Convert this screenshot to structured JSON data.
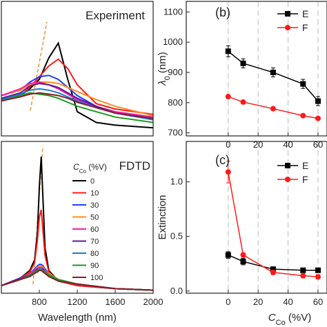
{
  "chart_data": [
    {
      "type": "line",
      "title": "Experiment",
      "title_color": "#ff1a1a",
      "x": [
        400,
        600,
        700,
        800,
        900,
        1000,
        1100,
        1200,
        1400,
        1600,
        2000
      ],
      "xlim": [
        400,
        2000
      ],
      "ylim": [
        0,
        1
      ],
      "series": [
        {
          "color": "#000000",
          "values": [
            0.26,
            0.3,
            0.35,
            0.42,
            0.58,
            0.69,
            0.42,
            0.18,
            0.1,
            0.08,
            0.06
          ]
        },
        {
          "color": "#ff1a1a",
          "values": [
            0.28,
            0.3,
            0.36,
            0.44,
            0.52,
            0.57,
            0.5,
            0.38,
            0.24,
            0.2,
            0.16
          ]
        },
        {
          "color": "#1f3fff",
          "values": [
            0.3,
            0.34,
            0.4,
            0.44,
            0.45,
            0.42,
            0.36,
            0.3,
            0.22,
            0.17,
            0.12
          ]
        },
        {
          "color": "#ff8c1a",
          "values": [
            0.3,
            0.34,
            0.38,
            0.4,
            0.4,
            0.39,
            0.36,
            0.33,
            0.27,
            0.22,
            0.15
          ]
        },
        {
          "color": "#ff1aa8",
          "values": [
            0.3,
            0.35,
            0.39,
            0.4,
            0.38,
            0.35,
            0.31,
            0.27,
            0.22,
            0.18,
            0.14
          ]
        },
        {
          "color": "#5a1a9a",
          "values": [
            0.28,
            0.32,
            0.37,
            0.39,
            0.38,
            0.36,
            0.32,
            0.28,
            0.22,
            0.17,
            0.13
          ]
        },
        {
          "color": "#1a7ad0",
          "values": [
            0.27,
            0.31,
            0.34,
            0.35,
            0.34,
            0.32,
            0.29,
            0.26,
            0.21,
            0.17,
            0.12
          ]
        },
        {
          "color": "#1a9a1a",
          "values": [
            0.26,
            0.3,
            0.32,
            0.31,
            0.3,
            0.28,
            0.25,
            0.22,
            0.18,
            0.14,
            0.1
          ]
        },
        {
          "color": "#8a1a2a",
          "values": [
            0.26,
            0.29,
            0.31,
            0.32,
            0.31,
            0.3,
            0.28,
            0.25,
            0.21,
            0.17,
            0.13
          ]
        }
      ]
    },
    {
      "type": "line",
      "title": "FDTD",
      "title_color": "#ff1a1a",
      "xlabel": "Wavelength (nm)",
      "legend_title": [
        "C",
        "Co",
        " (%V)"
      ],
      "x": [
        400,
        600,
        700,
        750,
        780,
        800,
        820,
        840,
        860,
        900,
        1000,
        1200,
        1600,
        2000
      ],
      "xlim": [
        400,
        2000
      ],
      "xticks": [
        800,
        1200,
        1600,
        2000
      ],
      "ylim": [
        0,
        1
      ],
      "series": [
        {
          "name": "0",
          "color": "#000000",
          "values": [
            0.05,
            0.1,
            0.15,
            0.22,
            0.4,
            0.7,
            0.9,
            0.6,
            0.3,
            0.15,
            0.08,
            0.05,
            0.03,
            0.02
          ]
        },
        {
          "name": "10",
          "color": "#ff1a1a",
          "values": [
            0.05,
            0.1,
            0.14,
            0.2,
            0.35,
            0.5,
            0.55,
            0.4,
            0.25,
            0.14,
            0.08,
            0.05,
            0.03,
            0.02
          ]
        },
        {
          "name": "30",
          "color": "#1f3fff",
          "values": [
            0.05,
            0.1,
            0.13,
            0.16,
            0.18,
            0.19,
            0.19,
            0.18,
            0.16,
            0.13,
            0.09,
            0.06,
            0.03,
            0.02
          ]
        },
        {
          "name": "50",
          "color": "#ff8c1a",
          "values": [
            0.05,
            0.1,
            0.13,
            0.15,
            0.17,
            0.18,
            0.18,
            0.17,
            0.15,
            0.13,
            0.09,
            0.06,
            0.03,
            0.02
          ]
        },
        {
          "name": "60",
          "color": "#ff1aa8",
          "values": [
            0.05,
            0.1,
            0.13,
            0.15,
            0.16,
            0.17,
            0.17,
            0.16,
            0.15,
            0.12,
            0.09,
            0.06,
            0.03,
            0.02
          ]
        },
        {
          "name": "70",
          "color": "#5a1a9a",
          "values": [
            0.05,
            0.1,
            0.12,
            0.14,
            0.16,
            0.16,
            0.16,
            0.16,
            0.14,
            0.12,
            0.09,
            0.06,
            0.03,
            0.02
          ]
        },
        {
          "name": "80",
          "color": "#1a7ad0",
          "values": [
            0.05,
            0.09,
            0.12,
            0.14,
            0.15,
            0.16,
            0.16,
            0.15,
            0.14,
            0.12,
            0.09,
            0.06,
            0.03,
            0.02
          ]
        },
        {
          "name": "90",
          "color": "#1a9a1a",
          "values": [
            0.05,
            0.09,
            0.12,
            0.14,
            0.15,
            0.15,
            0.15,
            0.15,
            0.14,
            0.12,
            0.09,
            0.06,
            0.03,
            0.02
          ]
        },
        {
          "name": "100",
          "color": "#8a1a2a",
          "values": [
            0.05,
            0.09,
            0.11,
            0.13,
            0.14,
            0.15,
            0.15,
            0.14,
            0.13,
            0.11,
            0.08,
            0.06,
            0.03,
            0.02
          ]
        }
      ]
    },
    {
      "type": "line",
      "title": "(b)",
      "ylabel": [
        "λ",
        "0",
        " (nm)"
      ],
      "x": [
        0,
        10,
        30,
        50,
        60
      ],
      "xlim": [
        -28,
        66
      ],
      "xticks": [
        0,
        20,
        40,
        60
      ],
      "grid": true,
      "ylim": [
        690,
        1135
      ],
      "yticks": [
        700,
        800,
        900,
        1000,
        1100
      ],
      "series": [
        {
          "name": "E",
          "color": "#000000",
          "marker": "square",
          "values": [
            970,
            930,
            900,
            862,
            805
          ],
          "errors": [
            18,
            15,
            15,
            15,
            15
          ]
        },
        {
          "name": "F",
          "color": "#ff1a1a",
          "marker": "circle",
          "values": [
            820,
            802,
            780,
            757,
            748
          ]
        }
      ]
    },
    {
      "type": "line",
      "title": "(c)",
      "ylabel": [
        "Extinction"
      ],
      "xlabel": [
        "C",
        "Co",
        " (%V)"
      ],
      "x": [
        0,
        10,
        30,
        50,
        60
      ],
      "xlim": [
        -28,
        66
      ],
      "xticks": [
        0,
        20,
        40,
        60
      ],
      "grid": true,
      "ylim": [
        -0.02,
        1.37
      ],
      "yticks": [
        {
          "value": 0,
          "label": "0.0"
        },
        0.5,
        {
          "value": 1,
          "label": "1.0"
        }
      ],
      "series": [
        {
          "name": "E",
          "color": "#000000",
          "marker": "square",
          "values": [
            0.33,
            0.27,
            0.2,
            0.19,
            0.19
          ],
          "errors": [
            0.03,
            0.03,
            0.02,
            0.02,
            0.02
          ]
        },
        {
          "name": "F",
          "color": "#ff1a1a",
          "marker": "circle",
          "values": [
            1.09,
            0.33,
            0.17,
            0.14,
            0.13
          ],
          "errors": [
            0.1,
            0.02,
            0.02,
            0.02,
            0.02
          ]
        }
      ]
    }
  ]
}
